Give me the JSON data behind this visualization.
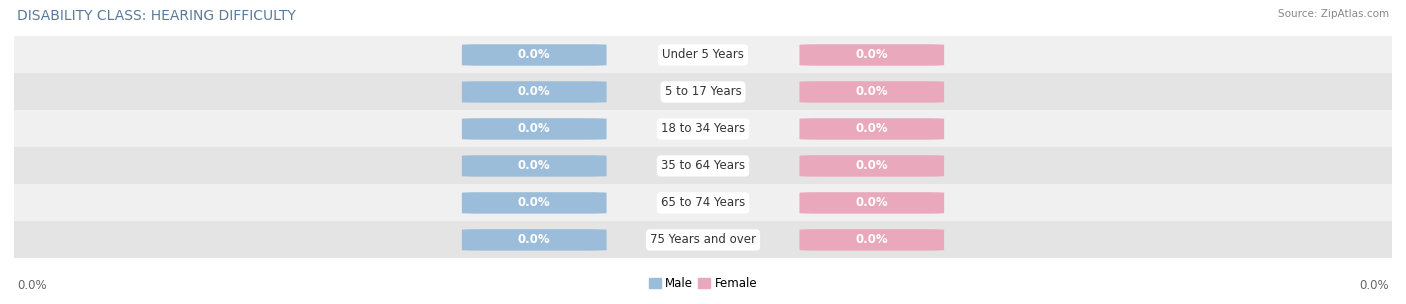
{
  "title": "DISABILITY CLASS: HEARING DIFFICULTY",
  "source": "Source: ZipAtlas.com",
  "categories": [
    "Under 5 Years",
    "5 to 17 Years",
    "18 to 34 Years",
    "35 to 64 Years",
    "65 to 74 Years",
    "75 Years and over"
  ],
  "male_values": [
    0.0,
    0.0,
    0.0,
    0.0,
    0.0,
    0.0
  ],
  "female_values": [
    0.0,
    0.0,
    0.0,
    0.0,
    0.0,
    0.0
  ],
  "male_color": "#9bbdda",
  "female_color": "#e9a8bc",
  "row_bg_color_odd": "#f0f0f0",
  "row_bg_color_even": "#e4e4e4",
  "title_fontsize": 10,
  "label_fontsize": 8.5,
  "value_fontsize": 8.5,
  "tick_fontsize": 8.5,
  "male_label": "Male",
  "female_label": "Female",
  "left_tick_label": "0.0%",
  "right_tick_label": "0.0%",
  "title_color": "#5a7a9a",
  "source_color": "#888888"
}
